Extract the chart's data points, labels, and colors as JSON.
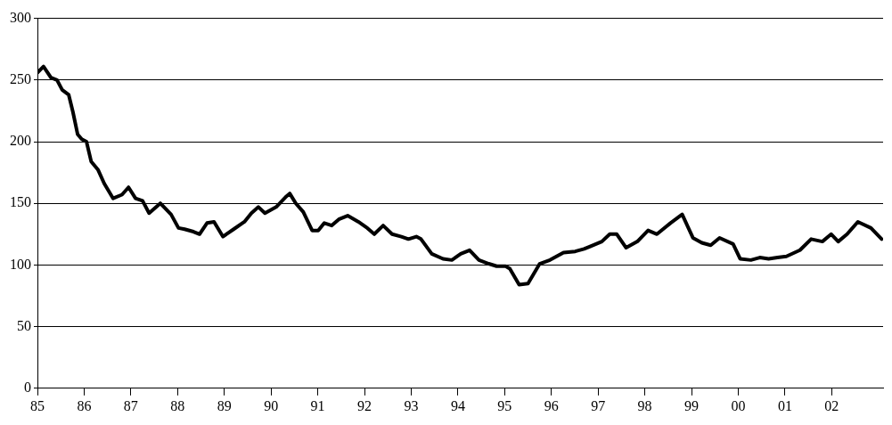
{
  "chart_data": {
    "type": "line",
    "x": [
      1985.0,
      1985.13,
      1985.29,
      1985.42,
      1985.53,
      1985.67,
      1985.76,
      1985.86,
      1985.95,
      1986.05,
      1986.15,
      1986.3,
      1986.43,
      1986.62,
      1986.81,
      1986.95,
      1987.1,
      1987.25,
      1987.39,
      1987.63,
      1987.86,
      1988.02,
      1988.15,
      1988.34,
      1988.47,
      1988.63,
      1988.78,
      1988.97,
      1989.2,
      1989.43,
      1989.58,
      1989.73,
      1989.87,
      1990.11,
      1990.31,
      1990.4,
      1990.53,
      1990.69,
      1990.88,
      1991.01,
      1991.14,
      1991.3,
      1991.45,
      1991.64,
      1991.87,
      1992.06,
      1992.21,
      1992.4,
      1992.59,
      1992.79,
      1992.94,
      1993.11,
      1993.21,
      1993.44,
      1993.68,
      1993.87,
      1994.06,
      1994.25,
      1994.45,
      1994.66,
      1994.83,
      1995.02,
      1995.11,
      1995.31,
      1995.5,
      1995.75,
      1995.97,
      1996.26,
      1996.51,
      1996.7,
      1996.83,
      1997.08,
      1997.25,
      1997.4,
      1997.6,
      1997.84,
      1998.07,
      1998.26,
      1998.55,
      1998.8,
      1999.03,
      1999.22,
      1999.41,
      1999.6,
      1999.89,
      2000.04,
      2000.27,
      2000.46,
      2000.65,
      2000.84,
      2001.03,
      2001.32,
      2001.56,
      2001.8,
      2001.99,
      2002.14,
      2002.33,
      2002.56,
      2002.84,
      2003.07
    ],
    "series": [
      {
        "color": "#000000",
        "values": [
          256,
          261,
          252,
          250,
          242,
          238,
          224,
          206,
          202,
          200,
          184,
          177,
          166,
          154,
          157,
          163,
          154,
          152,
          142,
          150,
          141,
          130,
          129,
          127,
          125,
          134,
          135,
          123,
          129,
          135,
          142,
          147,
          142,
          147,
          155,
          158,
          150,
          143,
          128,
          128,
          134,
          132,
          137,
          140,
          135,
          130,
          125,
          132,
          125,
          123,
          121,
          123,
          121,
          109,
          105,
          104,
          109,
          112,
          104,
          101,
          99,
          99,
          97,
          84,
          85,
          101,
          104,
          110,
          111,
          113,
          115,
          119,
          125,
          125,
          114,
          119,
          128,
          125,
          134,
          141,
          122,
          118,
          116,
          122,
          117,
          105,
          104,
          106,
          105,
          106,
          107,
          112,
          121,
          119,
          125,
          119,
          125,
          135,
          130,
          121
        ]
      }
    ],
    "xlim": [
      1985,
      2003.1
    ],
    "xticks": [
      {
        "value": 1985,
        "label": "85"
      },
      {
        "value": 1986,
        "label": "86"
      },
      {
        "value": 1987,
        "label": "87"
      },
      {
        "value": 1988,
        "label": "88"
      },
      {
        "value": 1989,
        "label": "89"
      },
      {
        "value": 1990,
        "label": "90"
      },
      {
        "value": 1991,
        "label": "91"
      },
      {
        "value": 1992,
        "label": "92"
      },
      {
        "value": 1993,
        "label": "93"
      },
      {
        "value": 1994,
        "label": "94"
      },
      {
        "value": 1995,
        "label": "95"
      },
      {
        "value": 1996,
        "label": "96"
      },
      {
        "value": 1997,
        "label": "97"
      },
      {
        "value": 1998,
        "label": "98"
      },
      {
        "value": 1999,
        "label": "99"
      },
      {
        "value": 2000,
        "label": "00"
      },
      {
        "value": 2001,
        "label": "01"
      },
      {
        "value": 2002,
        "label": "02"
      }
    ],
    "ylim": [
      0,
      300
    ],
    "yticks": [
      0,
      50,
      100,
      150,
      200,
      250,
      300
    ],
    "grid": "y",
    "legend": false,
    "marker": "none",
    "line_style": "solid"
  }
}
